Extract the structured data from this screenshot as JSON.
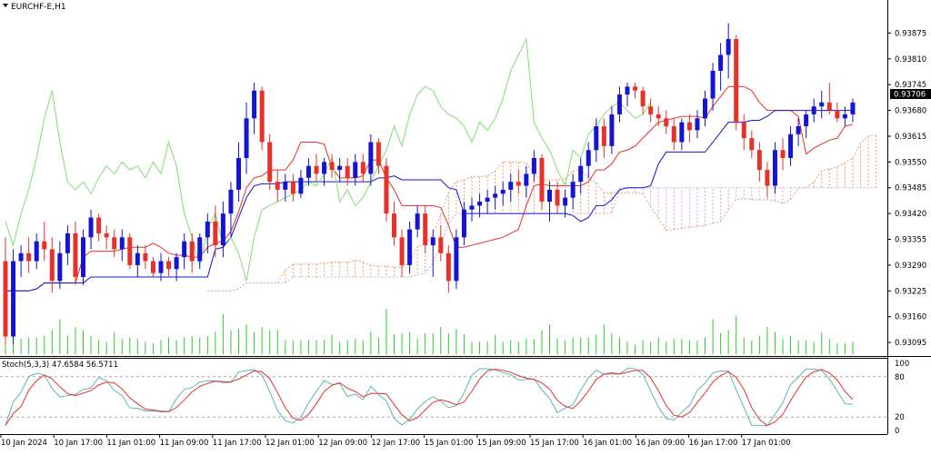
{
  "window": {
    "symbol_title": "EURCHF-E,H1",
    "dropdown_icon": "triangle-down-icon"
  },
  "stoch": {
    "label": "Stoch(5,3,3) 47.6584 56.5711",
    "levels": [
      "100",
      "80",
      "20",
      "0"
    ]
  },
  "price_axis": {
    "ticks": [
      "0.93875",
      "0.93810",
      "0.93745",
      "0.93680",
      "0.93615",
      "0.93550",
      "0.93485",
      "0.93420",
      "0.93355",
      "0.93290",
      "0.93225",
      "0.93160",
      "0.93095"
    ],
    "current_price": "0.93706"
  },
  "time_axis": {
    "labels": [
      "10 Jan 2024",
      "10 Jan 17:00",
      "11 Jan 01:00",
      "11 Jan 09:00",
      "11 Jan 17:00",
      "12 Jan 01:00",
      "12 Jan 09:00",
      "12 Jan 17:00",
      "15 Jan 01:00",
      "15 Jan 09:00",
      "15 Jan 17:00",
      "16 Jan 01:00",
      "16 Jan 09:00",
      "16 Jan 17:00",
      "17 Jan 01:00"
    ]
  },
  "colors": {
    "bull": "#1414d2",
    "bear": "#e8312a",
    "tenkan": "#e8312a",
    "kijun": "#1414d2",
    "chikou": "#7ee070",
    "senkou_a": "#e8a070",
    "senkou_b": "#c8a8d8",
    "volume": "#2ecc2e",
    "stoch_main": "#5fb6b6",
    "stoch_signal": "#e8312a"
  },
  "chart_data": {
    "type": "candlestick",
    "symbol": "EURCHF-E",
    "timeframe": "H1",
    "ylim": [
      0.9307,
      0.9394
    ],
    "candles": [
      {
        "o": 0.933,
        "h": 0.9336,
        "l": 0.9309,
        "c": 0.9311
      },
      {
        "o": 0.9311,
        "h": 0.9333,
        "l": 0.9309,
        "c": 0.933
      },
      {
        "o": 0.933,
        "h": 0.9334,
        "l": 0.9326,
        "c": 0.9332
      },
      {
        "o": 0.9332,
        "h": 0.9336,
        "l": 0.9327,
        "c": 0.933
      },
      {
        "o": 0.933,
        "h": 0.9337,
        "l": 0.9328,
        "c": 0.9335
      },
      {
        "o": 0.9335,
        "h": 0.934,
        "l": 0.933,
        "c": 0.9333
      },
      {
        "o": 0.9333,
        "h": 0.9336,
        "l": 0.9322,
        "c": 0.9325
      },
      {
        "o": 0.9325,
        "h": 0.9335,
        "l": 0.9323,
        "c": 0.9332
      },
      {
        "o": 0.9332,
        "h": 0.9339,
        "l": 0.9329,
        "c": 0.9337
      },
      {
        "o": 0.9337,
        "h": 0.934,
        "l": 0.9324,
        "c": 0.9326
      },
      {
        "o": 0.9326,
        "h": 0.9338,
        "l": 0.9324,
        "c": 0.9336
      },
      {
        "o": 0.9336,
        "h": 0.9343,
        "l": 0.9333,
        "c": 0.9341
      },
      {
        "o": 0.9341,
        "h": 0.9342,
        "l": 0.9335,
        "c": 0.9337
      },
      {
        "o": 0.9337,
        "h": 0.9339,
        "l": 0.9333,
        "c": 0.9336
      },
      {
        "o": 0.9336,
        "h": 0.9338,
        "l": 0.9331,
        "c": 0.9333
      },
      {
        "o": 0.9333,
        "h": 0.9338,
        "l": 0.933,
        "c": 0.9336
      },
      {
        "o": 0.9336,
        "h": 0.9337,
        "l": 0.9328,
        "c": 0.9329
      },
      {
        "o": 0.9329,
        "h": 0.9334,
        "l": 0.9326,
        "c": 0.9332
      },
      {
        "o": 0.9332,
        "h": 0.9334,
        "l": 0.9328,
        "c": 0.933
      },
      {
        "o": 0.933,
        "h": 0.9331,
        "l": 0.9326,
        "c": 0.9327
      },
      {
        "o": 0.9327,
        "h": 0.9332,
        "l": 0.9325,
        "c": 0.933
      },
      {
        "o": 0.933,
        "h": 0.9331,
        "l": 0.9326,
        "c": 0.9328
      },
      {
        "o": 0.9328,
        "h": 0.9332,
        "l": 0.9325,
        "c": 0.9331
      },
      {
        "o": 0.9331,
        "h": 0.9337,
        "l": 0.9328,
        "c": 0.9335
      },
      {
        "o": 0.9335,
        "h": 0.9337,
        "l": 0.9327,
        "c": 0.933
      },
      {
        "o": 0.933,
        "h": 0.9337,
        "l": 0.9328,
        "c": 0.9336
      },
      {
        "o": 0.9336,
        "h": 0.9342,
        "l": 0.9332,
        "c": 0.934
      },
      {
        "o": 0.934,
        "h": 0.9344,
        "l": 0.9331,
        "c": 0.9334
      },
      {
        "o": 0.9334,
        "h": 0.9345,
        "l": 0.9331,
        "c": 0.9342
      },
      {
        "o": 0.9342,
        "h": 0.935,
        "l": 0.9336,
        "c": 0.9348
      },
      {
        "o": 0.9348,
        "h": 0.936,
        "l": 0.9345,
        "c": 0.9356
      },
      {
        "o": 0.9356,
        "h": 0.937,
        "l": 0.9352,
        "c": 0.9366
      },
      {
        "o": 0.9366,
        "h": 0.9375,
        "l": 0.9362,
        "c": 0.9373
      },
      {
        "o": 0.9373,
        "h": 0.9374,
        "l": 0.9358,
        "c": 0.936
      },
      {
        "o": 0.936,
        "h": 0.9362,
        "l": 0.9348,
        "c": 0.935
      },
      {
        "o": 0.935,
        "h": 0.9353,
        "l": 0.9345,
        "c": 0.9348
      },
      {
        "o": 0.9348,
        "h": 0.9352,
        "l": 0.9345,
        "c": 0.935
      },
      {
        "o": 0.935,
        "h": 0.9352,
        "l": 0.9345,
        "c": 0.9347
      },
      {
        "o": 0.9347,
        "h": 0.9353,
        "l": 0.9346,
        "c": 0.9351
      },
      {
        "o": 0.9351,
        "h": 0.9356,
        "l": 0.9349,
        "c": 0.9354
      },
      {
        "o": 0.9354,
        "h": 0.9357,
        "l": 0.935,
        "c": 0.9352
      },
      {
        "o": 0.9352,
        "h": 0.9356,
        "l": 0.9349,
        "c": 0.9355
      },
      {
        "o": 0.9355,
        "h": 0.9357,
        "l": 0.9351,
        "c": 0.9353
      },
      {
        "o": 0.9353,
        "h": 0.9356,
        "l": 0.935,
        "c": 0.9354
      },
      {
        "o": 0.9354,
        "h": 0.9356,
        "l": 0.9349,
        "c": 0.9351
      },
      {
        "o": 0.9351,
        "h": 0.9357,
        "l": 0.9349,
        "c": 0.9355
      },
      {
        "o": 0.9355,
        "h": 0.9357,
        "l": 0.935,
        "c": 0.9352
      },
      {
        "o": 0.9352,
        "h": 0.9362,
        "l": 0.9349,
        "c": 0.936
      },
      {
        "o": 0.936,
        "h": 0.9361,
        "l": 0.9352,
        "c": 0.9354
      },
      {
        "o": 0.9354,
        "h": 0.9356,
        "l": 0.934,
        "c": 0.9342
      },
      {
        "o": 0.9342,
        "h": 0.9345,
        "l": 0.9334,
        "c": 0.9336
      },
      {
        "o": 0.9336,
        "h": 0.9338,
        "l": 0.9326,
        "c": 0.9329
      },
      {
        "o": 0.9329,
        "h": 0.934,
        "l": 0.9327,
        "c": 0.9338
      },
      {
        "o": 0.9338,
        "h": 0.9344,
        "l": 0.9336,
        "c": 0.9342
      },
      {
        "o": 0.9342,
        "h": 0.9344,
        "l": 0.9332,
        "c": 0.9334
      },
      {
        "o": 0.9334,
        "h": 0.9338,
        "l": 0.9326,
        "c": 0.9336
      },
      {
        "o": 0.9336,
        "h": 0.9339,
        "l": 0.933,
        "c": 0.9332
      },
      {
        "o": 0.9332,
        "h": 0.9334,
        "l": 0.9322,
        "c": 0.9325
      },
      {
        "o": 0.9325,
        "h": 0.9338,
        "l": 0.9323,
        "c": 0.9336
      },
      {
        "o": 0.9336,
        "h": 0.9345,
        "l": 0.9334,
        "c": 0.9343
      },
      {
        "o": 0.9343,
        "h": 0.9346,
        "l": 0.934,
        "c": 0.9344
      },
      {
        "o": 0.9344,
        "h": 0.9347,
        "l": 0.9341,
        "c": 0.9345
      },
      {
        "o": 0.9345,
        "h": 0.9348,
        "l": 0.9342,
        "c": 0.9346
      },
      {
        "o": 0.9346,
        "h": 0.9349,
        "l": 0.9343,
        "c": 0.9347
      },
      {
        "o": 0.9347,
        "h": 0.935,
        "l": 0.9344,
        "c": 0.9348
      },
      {
        "o": 0.9348,
        "h": 0.9352,
        "l": 0.9345,
        "c": 0.935
      },
      {
        "o": 0.935,
        "h": 0.9353,
        "l": 0.9347,
        "c": 0.9349
      },
      {
        "o": 0.9349,
        "h": 0.9354,
        "l": 0.9346,
        "c": 0.9352
      },
      {
        "o": 0.9352,
        "h": 0.9358,
        "l": 0.935,
        "c": 0.9356
      },
      {
        "o": 0.9356,
        "h": 0.9357,
        "l": 0.9343,
        "c": 0.9345
      },
      {
        "o": 0.9345,
        "h": 0.935,
        "l": 0.934,
        "c": 0.9348
      },
      {
        "o": 0.9348,
        "h": 0.935,
        "l": 0.9342,
        "c": 0.9344
      },
      {
        "o": 0.9344,
        "h": 0.9348,
        "l": 0.9341,
        "c": 0.9346
      },
      {
        "o": 0.9346,
        "h": 0.9352,
        "l": 0.9343,
        "c": 0.935
      },
      {
        "o": 0.935,
        "h": 0.9356,
        "l": 0.9347,
        "c": 0.9354
      },
      {
        "o": 0.9354,
        "h": 0.936,
        "l": 0.9351,
        "c": 0.9358
      },
      {
        "o": 0.9358,
        "h": 0.9366,
        "l": 0.9355,
        "c": 0.9364
      },
      {
        "o": 0.9364,
        "h": 0.9366,
        "l": 0.9356,
        "c": 0.9359
      },
      {
        "o": 0.9359,
        "h": 0.9369,
        "l": 0.9357,
        "c": 0.9367
      },
      {
        "o": 0.9367,
        "h": 0.9374,
        "l": 0.9365,
        "c": 0.9372
      },
      {
        "o": 0.9372,
        "h": 0.9375,
        "l": 0.9369,
        "c": 0.9374
      },
      {
        "o": 0.9374,
        "h": 0.9375,
        "l": 0.9371,
        "c": 0.9373
      },
      {
        "o": 0.9373,
        "h": 0.9374,
        "l": 0.9367,
        "c": 0.9369
      },
      {
        "o": 0.9369,
        "h": 0.9371,
        "l": 0.9365,
        "c": 0.9367
      },
      {
        "o": 0.9367,
        "h": 0.9369,
        "l": 0.9364,
        "c": 0.9366
      },
      {
        "o": 0.9366,
        "h": 0.9368,
        "l": 0.9362,
        "c": 0.9364
      },
      {
        "o": 0.9364,
        "h": 0.9366,
        "l": 0.9358,
        "c": 0.936
      },
      {
        "o": 0.936,
        "h": 0.9366,
        "l": 0.9358,
        "c": 0.9365
      },
      {
        "o": 0.9365,
        "h": 0.9367,
        "l": 0.936,
        "c": 0.9363
      },
      {
        "o": 0.9363,
        "h": 0.9368,
        "l": 0.9361,
        "c": 0.9366
      },
      {
        "o": 0.9366,
        "h": 0.9373,
        "l": 0.9364,
        "c": 0.9371
      },
      {
        "o": 0.9371,
        "h": 0.938,
        "l": 0.9368,
        "c": 0.9378
      },
      {
        "o": 0.9378,
        "h": 0.9385,
        "l": 0.9373,
        "c": 0.9382
      },
      {
        "o": 0.9382,
        "h": 0.939,
        "l": 0.9376,
        "c": 0.9386
      },
      {
        "o": 0.9386,
        "h": 0.9387,
        "l": 0.9363,
        "c": 0.9365
      },
      {
        "o": 0.9365,
        "h": 0.9367,
        "l": 0.9358,
        "c": 0.9361
      },
      {
        "o": 0.9361,
        "h": 0.9363,
        "l": 0.9356,
        "c": 0.9358
      },
      {
        "o": 0.9358,
        "h": 0.936,
        "l": 0.935,
        "c": 0.9353
      },
      {
        "o": 0.9353,
        "h": 0.9355,
        "l": 0.9346,
        "c": 0.9349
      },
      {
        "o": 0.9349,
        "h": 0.936,
        "l": 0.9347,
        "c": 0.9358
      },
      {
        "o": 0.9358,
        "h": 0.9361,
        "l": 0.9353,
        "c": 0.9356
      },
      {
        "o": 0.9356,
        "h": 0.9364,
        "l": 0.9354,
        "c": 0.9362
      },
      {
        "o": 0.9362,
        "h": 0.9366,
        "l": 0.9359,
        "c": 0.9364
      },
      {
        "o": 0.9364,
        "h": 0.9368,
        "l": 0.9361,
        "c": 0.9367
      },
      {
        "o": 0.9367,
        "h": 0.9371,
        "l": 0.9365,
        "c": 0.9369
      },
      {
        "o": 0.9369,
        "h": 0.9373,
        "l": 0.9366,
        "c": 0.937
      },
      {
        "o": 0.937,
        "h": 0.9375,
        "l": 0.9367,
        "c": 0.9368
      },
      {
        "o": 0.9368,
        "h": 0.937,
        "l": 0.9365,
        "c": 0.9366
      },
      {
        "o": 0.9366,
        "h": 0.9369,
        "l": 0.9364,
        "c": 0.9367
      },
      {
        "o": 0.9367,
        "h": 0.9371,
        "l": 0.9365,
        "c": 0.937
      }
    ],
    "current_price": 0.93706,
    "indicators": [
      "Ichimoku Kinko Hyo (tenkan, kijun, chikou, cloud)",
      "Volumes",
      "Stochastic Oscillator (5,3,3)"
    ],
    "stochastic": {
      "main": 47.6584,
      "signal": 56.5711,
      "levels": [
        100,
        80,
        20,
        0
      ]
    }
  }
}
